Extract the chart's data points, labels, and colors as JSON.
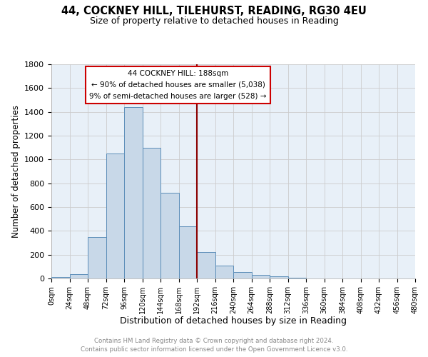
{
  "title": "44, COCKNEY HILL, TILEHURST, READING, RG30 4EU",
  "subtitle": "Size of property relative to detached houses in Reading",
  "xlabel": "Distribution of detached houses by size in Reading",
  "ylabel": "Number of detached properties",
  "footer_line1": "Contains HM Land Registry data © Crown copyright and database right 2024.",
  "footer_line2": "Contains public sector information licensed under the Open Government Licence v3.0.",
  "bin_edges": [
    0,
    24,
    48,
    72,
    96,
    120,
    144,
    168,
    192,
    216,
    240,
    264,
    288,
    312,
    336,
    360,
    384,
    408,
    432,
    456,
    480
  ],
  "bin_counts": [
    15,
    35,
    350,
    1050,
    1440,
    1100,
    720,
    440,
    225,
    110,
    55,
    30,
    18,
    8,
    3,
    2,
    1,
    0,
    0,
    0
  ],
  "bar_color": "#c8d8e8",
  "bar_edge_color": "#5b8db8",
  "grid_color": "#cccccc",
  "background_color": "#e8f0f8",
  "vline_x": 192,
  "vline_color": "#8b0000",
  "annotation_text_line1": "44 COCKNEY HILL: 188sqm",
  "annotation_text_line2": "← 90% of detached houses are smaller (5,038)",
  "annotation_text_line3": "9% of semi-detached houses are larger (528) →",
  "annotation_box_color": "#ffffff",
  "annotation_box_edge": "#cc0000",
  "ylim": [
    0,
    1800
  ],
  "xlim": [
    0,
    480
  ],
  "ytick_vals": [
    0,
    200,
    400,
    600,
    800,
    1000,
    1200,
    1400,
    1600,
    1800
  ],
  "xtick_labels": [
    "0sqm",
    "24sqm",
    "48sqm",
    "72sqm",
    "96sqm",
    "120sqm",
    "144sqm",
    "168sqm",
    "192sqm",
    "216sqm",
    "240sqm",
    "264sqm",
    "288sqm",
    "312sqm",
    "336sqm",
    "360sqm",
    "384sqm",
    "408sqm",
    "432sqm",
    "456sqm",
    "480sqm"
  ],
  "xtick_positions": [
    0,
    24,
    48,
    72,
    96,
    120,
    144,
    168,
    192,
    216,
    240,
    264,
    288,
    312,
    336,
    360,
    384,
    408,
    432,
    456,
    480
  ]
}
